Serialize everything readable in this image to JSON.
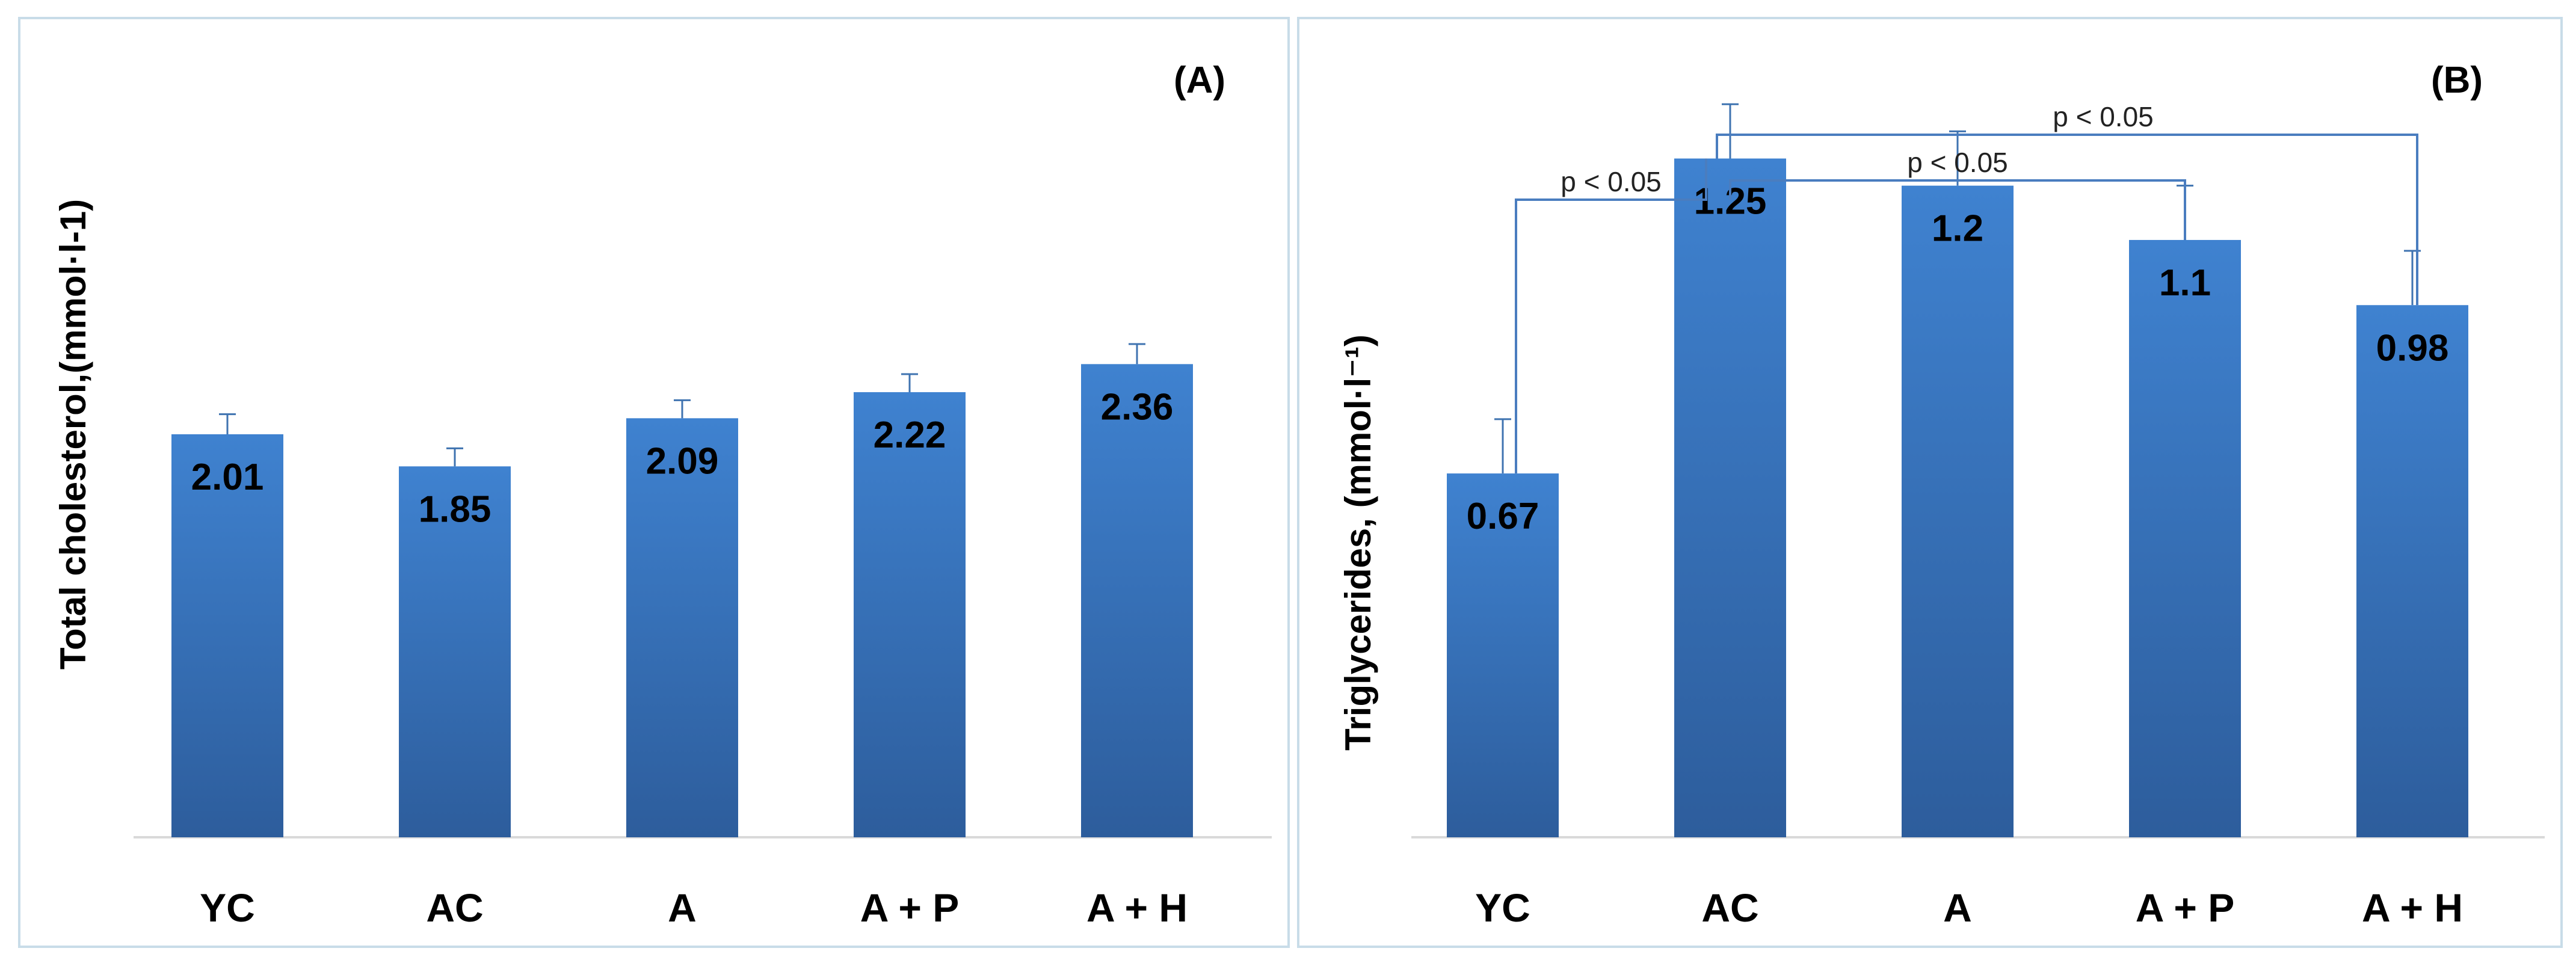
{
  "chart_data": [
    {
      "type": "bar",
      "panel_label": "(A)",
      "title": "",
      "xlabel": "",
      "ylabel": "Total cholesterol,(mmol·l-1)",
      "categories": [
        "YC",
        "AC",
        "A",
        "A + P",
        "A + H"
      ],
      "values": [
        2.01,
        1.85,
        2.09,
        2.22,
        2.36
      ],
      "value_labels": [
        "2.01",
        "1.85",
        "2.09",
        "2.22",
        "2.36"
      ],
      "errors": [
        0.1,
        0.09,
        0.09,
        0.09,
        0.1
      ],
      "ylim": [
        0,
        3.9
      ],
      "grid": false,
      "color": "#3a78c2",
      "annotations": []
    },
    {
      "type": "bar",
      "panel_label": "(B)",
      "title": "",
      "xlabel": "",
      "ylabel": "Triglycerides, (mmol·l⁻¹)",
      "categories": [
        "YC",
        "AC",
        "A",
        "A + P",
        "A + H"
      ],
      "values": [
        0.67,
        1.25,
        1.2,
        1.1,
        0.98
      ],
      "value_labels": [
        "0.67",
        "1.25",
        "1.2",
        "1.1",
        "0.98"
      ],
      "errors": [
        0.1,
        0.1,
        0.1,
        0.1,
        0.1
      ],
      "ylim": [
        0,
        1.44
      ],
      "grid": false,
      "color": "#3a78c2",
      "annotations": [
        {
          "from": "YC",
          "to": "AC",
          "text": "p < 0.05"
        },
        {
          "from": "AC",
          "to": "A + P",
          "text": "p < 0.05"
        },
        {
          "from": "AC",
          "to": "A + H",
          "text": "p < 0.05"
        }
      ]
    }
  ]
}
